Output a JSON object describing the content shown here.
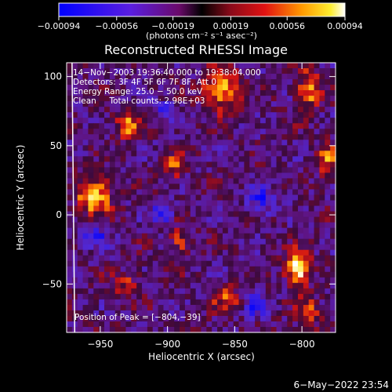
{
  "chart_data": {
    "type": "heatmap",
    "title": "Reconstructed RHESSI Image",
    "xlabel": "Heliocentric X (arcsec)",
    "ylabel": "Heliocentric Y (arcsec)",
    "xlim": [
      -975,
      -775
    ],
    "ylim": [
      -85,
      110
    ],
    "x_ticks": [
      -950,
      -900,
      -850,
      -800
    ],
    "x_tick_labels": [
      "−950",
      "−900",
      "−850",
      "−800"
    ],
    "y_ticks": [
      -50,
      0,
      50,
      100
    ],
    "y_tick_labels": [
      "−50",
      "0",
      "50",
      "100"
    ],
    "colorbar": {
      "range": [
        -0.00094,
        0.00094
      ],
      "ticks": [
        -0.00094,
        -0.00056,
        -0.00019,
        0.00019,
        0.00056,
        0.00094
      ],
      "tick_labels": [
        "−0.00094",
        "−0.00056",
        "−0.00019",
        "0.00019",
        "0.00056",
        "0.00094"
      ],
      "units": "(photons cm⁻² s⁻¹ asec⁻²)"
    },
    "annotations": [
      "14−Nov−2003 19:36:40.000 to 19:38:04.000",
      "Detectors: 3F 4F 5F 6F 7F 8F, Att 0",
      "Energy Range: 25.0 − 50.0 keV",
      "Clean     Total counts: 2.98E+03"
    ],
    "peak_label": "Position of Peak = [−804,−39]",
    "peak": {
      "x": -804,
      "y": -39
    },
    "image_grid": {
      "cols": 50,
      "rows": 49
    },
    "hot_regions": [
      {
        "x": -955,
        "y": 14,
        "sx": 9,
        "sy": 9,
        "amp": 1.0
      },
      {
        "x": -803,
        "y": -39,
        "sx": 6,
        "sy": 8,
        "amp": 1.25
      },
      {
        "x": -860,
        "y": 90,
        "sx": 9,
        "sy": 10,
        "amp": 0.9
      },
      {
        "x": -930,
        "y": 65,
        "sx": 6,
        "sy": 7,
        "amp": 0.75
      },
      {
        "x": -795,
        "y": 90,
        "sx": 6,
        "sy": 10,
        "amp": 0.75
      },
      {
        "x": -895,
        "y": 35,
        "sx": 6,
        "sy": 7,
        "amp": 0.55
      },
      {
        "x": -890,
        "y": -20,
        "sx": 6,
        "sy": 8,
        "amp": 0.55
      },
      {
        "x": -780,
        "y": 40,
        "sx": 6,
        "sy": 9,
        "amp": 0.6
      },
      {
        "x": -795,
        "y": -70,
        "sx": 6,
        "sy": 7,
        "amp": 0.6
      },
      {
        "x": -930,
        "y": -50,
        "sx": 7,
        "sy": 6,
        "amp": 0.45
      },
      {
        "x": -855,
        "y": -60,
        "sx": 8,
        "sy": 6,
        "amp": 0.5
      }
    ],
    "cold_regions": [
      {
        "x": -955,
        "y": -15,
        "sx": 7,
        "sy": 6
      },
      {
        "x": -830,
        "y": 10,
        "sx": 7,
        "sy": 7
      },
      {
        "x": -905,
        "y": 0,
        "sx": 6,
        "sy": 5
      },
      {
        "x": -835,
        "y": -65,
        "sx": 6,
        "sy": 6
      },
      {
        "x": -900,
        "y": 75,
        "sx": 5,
        "sy": 5
      }
    ],
    "limb_x_at_ylim": [
      -969,
      -971
    ],
    "grid": false
  },
  "footer": {
    "date": "6−May−2022 23:54"
  }
}
